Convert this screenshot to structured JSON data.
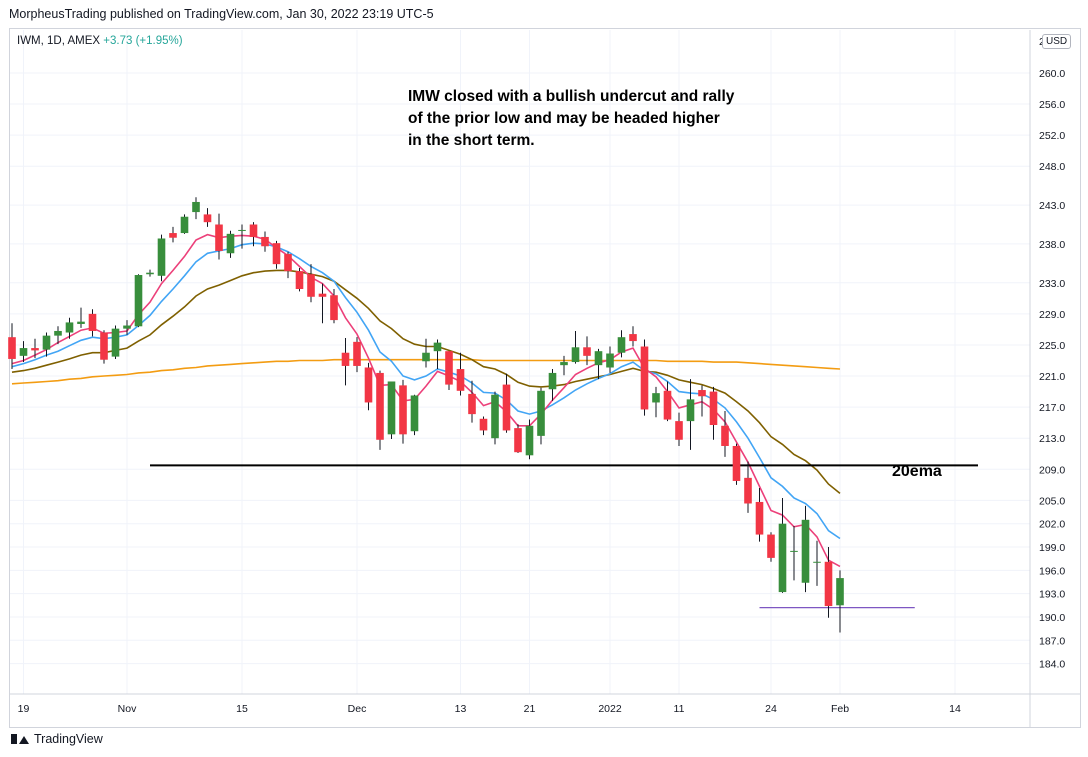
{
  "header": {
    "publisher": "MorpheusTrading published on TradingView.com, Jan 30, 2022 23:19 UTC-5"
  },
  "symbol": {
    "info": "IWM, 1D, AMEX",
    "change": "+3.73 (+1.95%)"
  },
  "currency": "USD",
  "footer": {
    "brand": "TradingView"
  },
  "annotations": {
    "main_note": [
      "IMW closed with a bullish undercut and rally",
      "of the prior low and may be headed higher",
      "in the short term."
    ],
    "ema_label": "20ema"
  },
  "chart_data": {
    "type": "candlestick",
    "y_axis": {
      "ylim": [
        181.5,
        264.5
      ],
      "ticks": [
        184.0,
        187.0,
        190.0,
        193.0,
        196.0,
        199.0,
        202.0,
        205.0,
        209.0,
        213.0,
        217.0,
        221.0,
        225.0,
        229.0,
        233.0,
        238.0,
        243.0,
        248.0,
        252.0,
        256.0,
        260.0
      ],
      "top_tick_partial": "2"
    },
    "x_axis": {
      "labels": [
        {
          "label": "19",
          "index": 1
        },
        {
          "label": "Nov",
          "index": 10
        },
        {
          "label": "15",
          "index": 20
        },
        {
          "label": "Dec",
          "index": 30
        },
        {
          "label": "13",
          "index": 39
        },
        {
          "label": "21",
          "index": 45
        },
        {
          "label": "2022",
          "index": 52
        },
        {
          "label": "11",
          "index": 58
        },
        {
          "label": "24",
          "index": 66
        },
        {
          "label": "Feb",
          "index": 72
        },
        {
          "label": "14",
          "index": 82
        }
      ],
      "bar_count_span": [
        0,
        83
      ]
    },
    "candles": [
      [
        226,
        227.8,
        221.9,
        223.2
      ],
      [
        223.6,
        225.5,
        222.8,
        224.6
      ],
      [
        224.6,
        225.8,
        223.3,
        224.3
      ],
      [
        224.4,
        226.6,
        223.5,
        226.2
      ],
      [
        226.2,
        227.4,
        225.1,
        226.8
      ],
      [
        226.6,
        228.5,
        225.8,
        227.9
      ],
      [
        227.7,
        229.8,
        227.2,
        228.0
      ],
      [
        229.0,
        229.6,
        226.1,
        226.8
      ],
      [
        226.6,
        226.9,
        222.6,
        223.1
      ],
      [
        223.5,
        227.5,
        223.2,
        227.1
      ],
      [
        227.1,
        228.2,
        226.3,
        227.5
      ],
      [
        227.4,
        234.1,
        227.3,
        234.0
      ],
      [
        234.1,
        234.7,
        233.8,
        234.3
      ],
      [
        233.9,
        239.2,
        233.2,
        238.7
      ],
      [
        239.4,
        240.2,
        238.2,
        238.8
      ],
      [
        239.4,
        241.8,
        239.3,
        241.5
      ],
      [
        242.1,
        244.0,
        241.2,
        243.4
      ],
      [
        241.8,
        242.6,
        240.2,
        240.8
      ],
      [
        240.5,
        241.9,
        236.0,
        237.1
      ],
      [
        236.8,
        239.7,
        236.2,
        239.3
      ],
      [
        239.7,
        240.5,
        237.4,
        239.8
      ],
      [
        240.5,
        240.8,
        237.7,
        238.9
      ],
      [
        238.9,
        239.6,
        237.0,
        237.7
      ],
      [
        238.1,
        238.4,
        234.8,
        235.4
      ],
      [
        236.7,
        237.0,
        233.6,
        234.5
      ],
      [
        234.5,
        234.9,
        231.9,
        232.2
      ],
      [
        234.1,
        235.4,
        230.5,
        231.2
      ],
      [
        231.6,
        232.9,
        227.8,
        231.2
      ],
      [
        231.4,
        232.2,
        227.8,
        228.2
      ],
      [
        224.0,
        225.9,
        219.8,
        222.3
      ],
      [
        225.4,
        226.0,
        221.5,
        222.3
      ],
      [
        222.1,
        222.7,
        216.6,
        217.6
      ],
      [
        221.4,
        221.7,
        211.5,
        212.8
      ],
      [
        213.5,
        220.3,
        212.9,
        220.3
      ],
      [
        219.8,
        220.5,
        212.3,
        213.5
      ],
      [
        213.9,
        218.6,
        213.4,
        218.5
      ],
      [
        222.9,
        225.8,
        222.1,
        224.0
      ],
      [
        224.2,
        225.7,
        221.9,
        225.3
      ],
      [
        224.2,
        224.2,
        219.2,
        219.9
      ],
      [
        221.9,
        224.0,
        218.5,
        219.1
      ],
      [
        218.7,
        220.4,
        215.0,
        216.1
      ],
      [
        215.5,
        215.8,
        213.4,
        214.0
      ],
      [
        213.0,
        219.0,
        212.2,
        218.6
      ],
      [
        219.9,
        221.3,
        213.7,
        214.0
      ],
      [
        214.3,
        214.8,
        211.1,
        211.2
      ],
      [
        210.8,
        215.4,
        210.3,
        214.6
      ],
      [
        213.3,
        219.5,
        212.2,
        219.1
      ],
      [
        219.3,
        221.9,
        217.8,
        221.4
      ],
      [
        222.4,
        223.6,
        221.1,
        222.8
      ],
      [
        222.8,
        226.8,
        222.6,
        224.7
      ],
      [
        224.7,
        226.1,
        222.4,
        223.6
      ],
      [
        222.4,
        224.5,
        220.6,
        224.2
      ],
      [
        222.1,
        224.8,
        221.4,
        223.9
      ],
      [
        224.0,
        226.9,
        223.4,
        226.0
      ],
      [
        226.4,
        227.4,
        224.8,
        225.5
      ],
      [
        224.8,
        225.7,
        215.9,
        216.7
      ],
      [
        217.6,
        219.6,
        215.7,
        218.8
      ],
      [
        219.1,
        220.3,
        215.2,
        215.4
      ],
      [
        215.2,
        216.3,
        212.0,
        212.8
      ],
      [
        215.2,
        220.6,
        211.5,
        218.0
      ],
      [
        219.2,
        219.8,
        215.8,
        218.4
      ],
      [
        219.0,
        219.6,
        212.8,
        214.7
      ],
      [
        214.6,
        216.5,
        210.6,
        212.0
      ],
      [
        212.0,
        212.3,
        207.0,
        207.5
      ],
      [
        207.9,
        210.0,
        203.4,
        204.6
      ],
      [
        204.8,
        206.6,
        199.7,
        200.6
      ],
      [
        200.6,
        200.9,
        197.1,
        197.6
      ],
      [
        193.2,
        205.3,
        193.1,
        202.0
      ],
      [
        198.5,
        201.7,
        194.7,
        198.5
      ],
      [
        194.4,
        204.3,
        193.2,
        202.5
      ],
      [
        197.1,
        199.8,
        194.0,
        197.1
      ],
      [
        197.1,
        199.0,
        189.9,
        191.4
      ],
      [
        191.5,
        196.0,
        188.0,
        195.0
      ]
    ],
    "series": [
      {
        "name": "",
        "color": "#ec407a",
        "values": [
          222.6,
          223.0,
          223.7,
          224.4,
          225.3,
          226.1,
          226.9,
          227.2,
          226.5,
          226.6,
          226.8,
          228.9,
          230.5,
          232.9,
          234.6,
          236.4,
          238.5,
          239.2,
          238.8,
          239.0,
          239.1,
          239.0,
          238.6,
          237.5,
          236.5,
          235.1,
          233.7,
          232.9,
          231.3,
          228.5,
          226.4,
          223.3,
          219.8,
          219.9,
          217.8,
          218.0,
          219.7,
          221.6,
          221.0,
          220.3,
          218.9,
          217.2,
          217.7,
          216.4,
          214.6,
          214.6,
          216.1,
          217.9,
          219.5,
          221.2,
          222.0,
          222.7,
          223.1,
          224.1,
          224.6,
          222.0,
          220.9,
          219.0,
          216.9,
          217.3,
          217.7,
          216.7,
          215.1,
          212.5,
          209.9,
          206.8,
          203.7,
          203.1,
          201.6,
          201.9,
          200.3,
          197.3,
          196.5
        ]
      },
      {
        "name": "",
        "color": "#42a5f5",
        "values": [
          222.2,
          222.6,
          223.1,
          223.7,
          224.2,
          224.9,
          225.6,
          226.0,
          225.8,
          226.0,
          226.3,
          227.5,
          228.8,
          230.6,
          232.2,
          233.9,
          235.7,
          236.8,
          237.1,
          237.4,
          237.9,
          238.1,
          238.0,
          237.6,
          237.0,
          236.1,
          235.1,
          234.3,
          233.2,
          231.1,
          229.2,
          226.9,
          224.1,
          222.9,
          221.0,
          220.5,
          221.0,
          221.9,
          221.5,
          221.0,
          220.1,
          218.9,
          218.8,
          217.9,
          216.5,
          216.1,
          216.5,
          217.3,
          218.2,
          219.2,
          220.0,
          220.7,
          221.3,
          222.2,
          222.8,
          221.7,
          221.3,
          220.3,
          219.0,
          218.8,
          218.7,
          218.0,
          216.9,
          215.1,
          213.0,
          210.5,
          207.9,
          206.8,
          205.3,
          204.6,
          203.3,
          201.1,
          200.1
        ]
      },
      {
        "name": "",
        "color": "#7f6000",
        "values": [
          221.5,
          221.7,
          222.0,
          222.4,
          222.8,
          223.2,
          223.7,
          224.0,
          224.0,
          224.3,
          224.6,
          225.5,
          226.3,
          227.6,
          228.7,
          229.9,
          231.3,
          232.2,
          232.7,
          233.3,
          233.9,
          234.3,
          234.5,
          234.6,
          234.6,
          234.4,
          234.1,
          233.8,
          233.2,
          232.1,
          231.0,
          229.7,
          228.1,
          227.1,
          225.8,
          225.1,
          224.8,
          224.8,
          224.3,
          223.8,
          223.1,
          222.2,
          221.9,
          221.2,
          220.2,
          219.7,
          219.6,
          219.7,
          219.9,
          220.3,
          220.6,
          220.9,
          221.2,
          221.6,
          222.0,
          221.6,
          221.5,
          221.1,
          220.5,
          220.2,
          219.9,
          219.4,
          218.8,
          217.7,
          216.5,
          215.0,
          213.2,
          212.2,
          210.9,
          210.1,
          208.9,
          207.1,
          205.9
        ]
      },
      {
        "name": "",
        "color": "#f39c12",
        "values": [
          220.0,
          220.1,
          220.2,
          220.3,
          220.4,
          220.6,
          220.7,
          220.9,
          221.0,
          221.1,
          221.2,
          221.4,
          221.5,
          221.7,
          221.8,
          222.0,
          222.1,
          222.3,
          222.4,
          222.5,
          222.6,
          222.7,
          222.8,
          222.9,
          222.9,
          223.0,
          223.0,
          223.0,
          223.1,
          223.1,
          223.1,
          223.1,
          223.1,
          223.1,
          223.1,
          223.1,
          223.1,
          223.1,
          223.1,
          223.1,
          223.1,
          223.0,
          223.0,
          223.0,
          223.0,
          223.0,
          223.0,
          223.0,
          223.0,
          223.0,
          223.0,
          223.0,
          223.0,
          223.0,
          223.0,
          223.0,
          223.0,
          222.9,
          222.9,
          222.9,
          222.9,
          222.8,
          222.8,
          222.8,
          222.7,
          222.6,
          222.5,
          222.4,
          222.3,
          222.2,
          222.1,
          222.0,
          221.9
        ]
      }
    ],
    "support_line": {
      "y": 209.5,
      "x0": 12,
      "x1": 84
    },
    "low_line": {
      "y": 191.2,
      "x0": 65,
      "x1": 78.5
    },
    "colors": {
      "up": "#388e3c",
      "down": "#f23645",
      "grid": "#f0f3fa",
      "axis_text": "#131722"
    }
  }
}
